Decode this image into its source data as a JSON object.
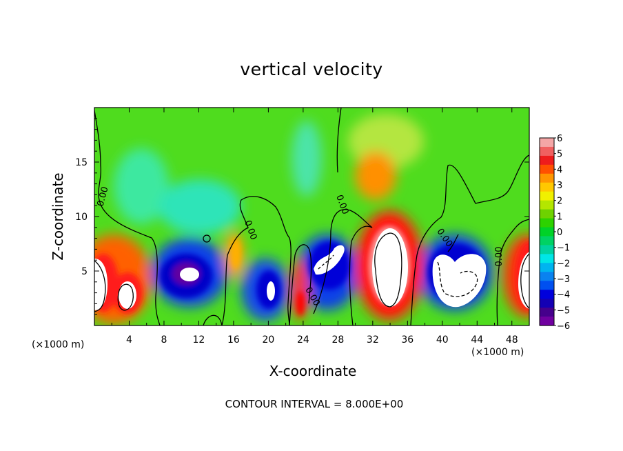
{
  "chart_data": {
    "type": "heatmap",
    "title": "vertical velocity",
    "xlabel": "X-coordinate",
    "ylabel": "Z-coordinate",
    "x_unit": "(×1000 m)",
    "x_ticks": [
      4,
      8,
      12,
      16,
      20,
      24,
      28,
      32,
      36,
      40,
      44,
      48
    ],
    "y_ticks": [
      5,
      10,
      15
    ],
    "xlim": [
      0,
      50
    ],
    "ylim": [
      0,
      20
    ],
    "colorbar": {
      "ticks": [
        6,
        5,
        4,
        3,
        2,
        1,
        0,
        -1,
        -2,
        -3,
        -4,
        -5,
        -6
      ],
      "range": [
        -6,
        6
      ],
      "colors": [
        "#f4a6a6",
        "#f06060",
        "#ee1c1c",
        "#ff5000",
        "#ff9600",
        "#ffc800",
        "#f0f000",
        "#b4e600",
        "#6ed200",
        "#2dd200",
        "#00d228",
        "#00d264",
        "#00d2a0",
        "#00e6e6",
        "#00b4f0",
        "#0a82f0",
        "#0050f0",
        "#0000dc",
        "#1400b4",
        "#46008c",
        "#7000a0"
      ]
    },
    "contour_label": "0.00",
    "contour_interval": "CONTOUR INTERVAL = 8.000E+00",
    "features": [
      {
        "x": 1.5,
        "z": 4.2,
        "value": 9
      },
      {
        "x": 3.5,
        "z": 3.0,
        "value": 9
      },
      {
        "x": 10.5,
        "z": 4.6,
        "value": -7
      },
      {
        "x": 17,
        "z": 5.8,
        "value": 3.5
      },
      {
        "x": 20.5,
        "z": 3.2,
        "value": -7
      },
      {
        "x": 24,
        "z": 2.5,
        "value": 4.5
      },
      {
        "x": 27,
        "z": 5.6,
        "value": -8
      },
      {
        "x": 34,
        "z": 5.5,
        "value": 10
      },
      {
        "x": 33.5,
        "z": 13.5,
        "value": 3.5
      },
      {
        "x": 41.5,
        "z": 4.5,
        "value": -9
      },
      {
        "x": 49.5,
        "z": 4.5,
        "value": 10
      }
    ]
  }
}
